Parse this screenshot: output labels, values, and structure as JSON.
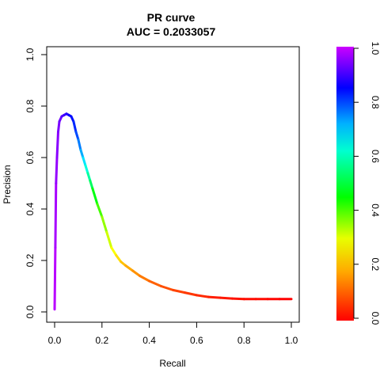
{
  "chart_data": {
    "type": "line",
    "title": "PR curve",
    "subtitle": "AUC = 0.2033057",
    "xlabel": "Recall",
    "ylabel": "Precision",
    "xlim": [
      0,
      1
    ],
    "ylim": [
      0,
      1
    ],
    "x_ticks": [
      "0.0",
      "0.2",
      "0.4",
      "0.6",
      "0.8",
      "1.0"
    ],
    "y_ticks": [
      "0.0",
      "0.2",
      "0.4",
      "0.6",
      "0.8",
      "1.0"
    ],
    "grid": false,
    "legend": "none",
    "colorbar": {
      "position": "right",
      "range": [
        0,
        1
      ],
      "ticks": [
        "0.0",
        "0.2",
        "0.4",
        "0.6",
        "0.8",
        "1.0"
      ],
      "palette": "rainbow",
      "low_color": "#ff0000",
      "high_color": "#cc00ff"
    },
    "series": [
      {
        "x": [
          0.0,
          0.003,
          0.006,
          0.01,
          0.015,
          0.02,
          0.03,
          0.04,
          0.05,
          0.06,
          0.07,
          0.08,
          0.09,
          0.1,
          0.11,
          0.12,
          0.13,
          0.14,
          0.15,
          0.16,
          0.18,
          0.2,
          0.22,
          0.24,
          0.26,
          0.28,
          0.3,
          0.33,
          0.36,
          0.4,
          0.45,
          0.5,
          0.55,
          0.6,
          0.65,
          0.7,
          0.75,
          0.8,
          0.85,
          0.9,
          0.95,
          1.0
        ],
        "y": [
          0.01,
          0.25,
          0.5,
          0.6,
          0.7,
          0.74,
          0.76,
          0.765,
          0.77,
          0.765,
          0.76,
          0.74,
          0.7,
          0.67,
          0.63,
          0.6,
          0.57,
          0.54,
          0.51,
          0.48,
          0.42,
          0.37,
          0.31,
          0.25,
          0.22,
          0.195,
          0.18,
          0.16,
          0.14,
          0.12,
          0.1,
          0.085,
          0.075,
          0.065,
          0.058,
          0.055,
          0.052,
          0.05,
          0.05,
          0.05,
          0.05,
          0.05
        ],
        "color_value": [
          1.0,
          0.99,
          0.97,
          0.96,
          0.95,
          0.94,
          0.92,
          0.9,
          0.88,
          0.86,
          0.84,
          0.82,
          0.8,
          0.76,
          0.72,
          0.68,
          0.63,
          0.58,
          0.53,
          0.47,
          0.4,
          0.33,
          0.27,
          0.23,
          0.2,
          0.17,
          0.15,
          0.13,
          0.11,
          0.09,
          0.07,
          0.06,
          0.05,
          0.04,
          0.03,
          0.02,
          0.02,
          0.01,
          0.01,
          0.01,
          0.0,
          0.0
        ]
      }
    ]
  }
}
